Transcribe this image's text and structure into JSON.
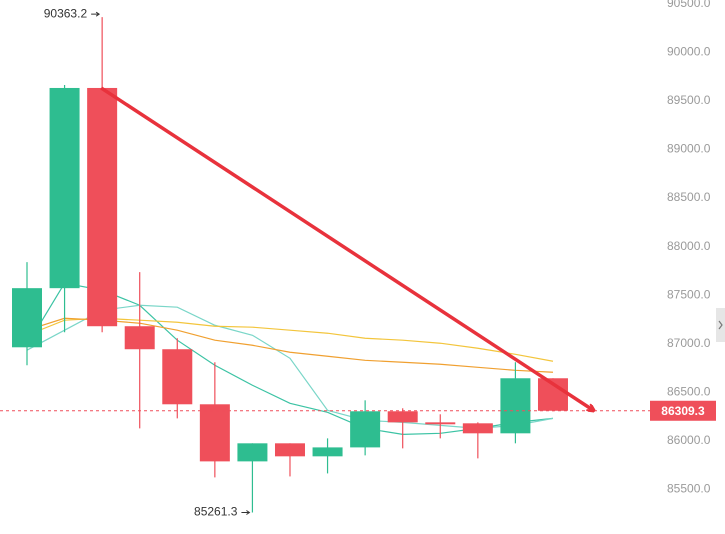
{
  "chart_data": {
    "type": "candlestick",
    "up_color": "#2ebd90",
    "down_color": "#ef4f5a",
    "open": [
      86963,
      87572,
      89634,
      87180,
      86943,
      86376,
      85788,
      85974,
      85840,
      85932,
      86304,
      86190,
      86180,
      86077,
      86644
    ],
    "close": [
      87572,
      89634,
      87180,
      86943,
      86376,
      85788,
      85974,
      85840,
      85932,
      86304,
      86190,
      86170,
      86077,
      86644,
      86309.3
    ],
    "high": [
      87840,
      89665,
      90363.2,
      87737,
      87056,
      86809,
      85974,
      85974,
      86025,
      86417,
      86335,
      86273,
      86190,
      86809,
      86644
    ],
    "low": [
      86778,
      87118,
      87118,
      86128,
      86231,
      85623,
      85261.3,
      85633,
      85664,
      85850,
      85922,
      86025,
      85819,
      85974,
      86304
    ],
    "lines": [
      {
        "color": "#3cc3a4",
        "values": [
          86984,
          87623,
          87551,
          87396,
          87036,
          86778,
          86572,
          86386,
          86293,
          86128,
          86066,
          86077,
          86128,
          86190,
          86231
        ]
      },
      {
        "color": "#7ad6c8",
        "values": [
          86933,
          87139,
          87345,
          87396,
          87376,
          87190,
          87087,
          86850,
          86314,
          86211,
          86190,
          86159,
          86128,
          86159,
          86231
        ]
      },
      {
        "color": "#f3c53c",
        "values": [
          87087,
          87242,
          87262,
          87242,
          87221,
          87180,
          87170,
          87139,
          87108,
          87056,
          87036,
          87005,
          86953,
          86891,
          86819
        ]
      },
      {
        "color": "#f0a030",
        "values": [
          87139,
          87262,
          87242,
          87211,
          87139,
          87036,
          86984,
          86912,
          86871,
          86829,
          86809,
          86788,
          86757,
          86726,
          86706
        ]
      }
    ],
    "ylim": [
      85040,
      90540
    ],
    "yticks": [
      {
        "value": 85500,
        "label": "85500.0"
      },
      {
        "value": 86000,
        "label": "86000.0"
      },
      {
        "value": 86500,
        "label": "86500.0"
      },
      {
        "value": 87000,
        "label": "87000.0"
      },
      {
        "value": 87500,
        "label": "87500.0"
      },
      {
        "value": 88000,
        "label": "88000.0"
      },
      {
        "value": 88500,
        "label": "88500.0"
      },
      {
        "value": 89000,
        "label": "89000.0"
      },
      {
        "value": 89500,
        "label": "89500.0"
      },
      {
        "value": 90000,
        "label": "90000.0"
      },
      {
        "value": 90500,
        "label": "90500.0"
      }
    ]
  }
}
